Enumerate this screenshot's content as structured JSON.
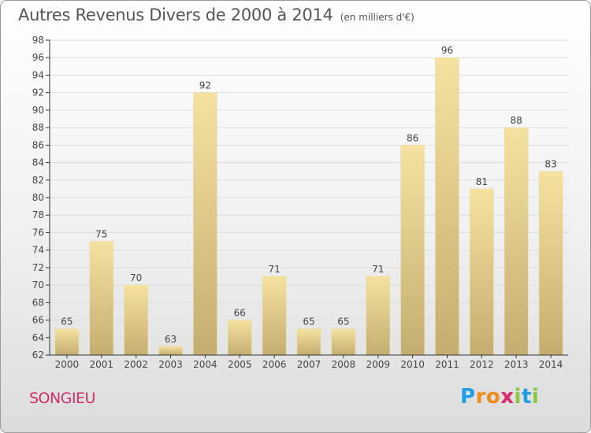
{
  "title": "Autres Revenus Divers de 2000 à 2014",
  "subtitle": "(en milliers d'€)",
  "commune": "SONGIEU",
  "logo": {
    "letters": [
      "P",
      "r",
      "o",
      "x",
      "i",
      "t",
      "i"
    ],
    "colors": [
      "#1f9ee8",
      "#f08a1c",
      "#f08a1c",
      "#d9286b",
      "#8cc63f",
      "#1f9ee8",
      "#8cc63f"
    ]
  },
  "colors": {
    "bar_light": "#f5e2a0",
    "bar_dark": "#c4ad70",
    "axis": "#333333",
    "grid": "#dddddd",
    "commune": "#d0306a"
  },
  "chart_data": {
    "type": "bar",
    "title": "Autres Revenus Divers de 2000 à 2014",
    "subtitle": "(en milliers d'€)",
    "categories": [
      "2000",
      "2001",
      "2002",
      "2003",
      "2004",
      "2005",
      "2006",
      "2007",
      "2008",
      "2009",
      "2010",
      "2011",
      "2012",
      "2013",
      "2014"
    ],
    "values": [
      65,
      75,
      70,
      63,
      92,
      66,
      71,
      65,
      65,
      71,
      86,
      96,
      81,
      88,
      83
    ],
    "ylim": [
      62,
      98
    ],
    "yticks": [
      62,
      64,
      66,
      68,
      70,
      72,
      74,
      76,
      78,
      80,
      82,
      84,
      86,
      88,
      90,
      92,
      94,
      96,
      98
    ],
    "xlabel": "",
    "ylabel": "",
    "grid": true,
    "legend": "none"
  }
}
